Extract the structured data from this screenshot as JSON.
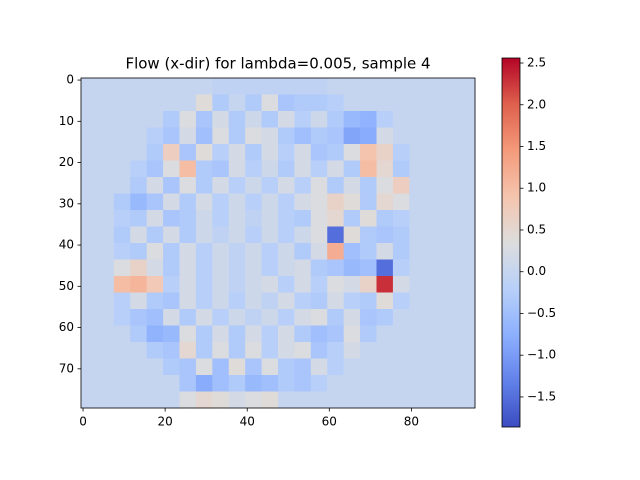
{
  "chart_data": {
    "type": "heatmap",
    "title": "Flow (x-dir) for lambda=0.005, sample 4",
    "cmap": "coolwarm",
    "clim": [
      -1.86,
      2.56
    ],
    "xlim": [
      -0.5,
      95.5
    ],
    "ylim": [
      79.5,
      -0.5
    ],
    "xticks": [
      0,
      20,
      40,
      60,
      80
    ],
    "yticks": [
      0,
      10,
      20,
      30,
      40,
      50,
      60,
      70
    ],
    "colorbar": {
      "ticks": [
        {
          "value": -1.5,
          "label": "−1.5"
        },
        {
          "value": -1.0,
          "label": "−1.0"
        },
        {
          "value": -0.5,
          "label": "−0.5"
        },
        {
          "value": 0,
          "label": "0.0"
        },
        0.5,
        {
          "value": 1.0,
          "label": "1.0"
        },
        1.5,
        {
          "value": 2.0,
          "label": "2.0"
        },
        2.5
      ]
    },
    "z": [
      [
        0,
        0,
        0,
        0,
        0,
        0,
        0,
        0,
        -0.1,
        -0.1,
        -0.1,
        -0.1,
        -0.1,
        -0.1,
        -0.1,
        0,
        0,
        0,
        0,
        0,
        0,
        0,
        0,
        0
      ],
      [
        0,
        0,
        0,
        0,
        0,
        0,
        0,
        0.4,
        -0.3,
        0,
        -0.3,
        0.3,
        -0.4,
        -0.3,
        -0.3,
        -0.2,
        0,
        0,
        0,
        0,
        0,
        0,
        0,
        0
      ],
      [
        0,
        0,
        0,
        0,
        0,
        -0.3,
        0.3,
        -0.4,
        0.2,
        -0.3,
        0.1,
        -0.3,
        0.2,
        -0.2,
        0.1,
        -0.3,
        -0.6,
        -0.7,
        -0.2,
        0,
        0,
        0,
        0,
        0
      ],
      [
        0,
        0,
        0,
        0,
        -0.2,
        -0.4,
        0.2,
        -0.5,
        0.3,
        -0.3,
        0.3,
        0.2,
        -0.3,
        -0.5,
        -0.3,
        -0.4,
        -0.9,
        -0.8,
        0.2,
        0,
        0,
        0,
        0,
        0
      ],
      [
        0,
        0,
        0,
        0,
        -0.3,
        0.7,
        -0.4,
        0.4,
        -0.2,
        0.2,
        -0.3,
        0.2,
        -0.2,
        0.2,
        -0.4,
        -0.3,
        0.3,
        0.9,
        0.6,
        -0.2,
        0,
        0,
        0,
        0
      ],
      [
        0,
        0,
        0,
        -0.2,
        -0.4,
        0.3,
        1.0,
        -0.3,
        -0.4,
        0.2,
        -0.2,
        0.1,
        -0.3,
        0.2,
        -0.2,
        0.2,
        -0.3,
        1.0,
        0.5,
        -0.3,
        0,
        0,
        0,
        0
      ],
      [
        0,
        0,
        0,
        -0.3,
        0.2,
        -0.4,
        0.3,
        -0.3,
        0.2,
        -0.2,
        0.1,
        -0.2,
        0.2,
        -0.2,
        0.3,
        -0.3,
        0.2,
        -0.3,
        0.3,
        0.7,
        0,
        0,
        0,
        0
      ],
      [
        0,
        0,
        -0.3,
        -0.6,
        -0.4,
        0.2,
        -0.3,
        0.2,
        -0.2,
        0.1,
        -0.2,
        0.1,
        -0.2,
        0.2,
        0.3,
        0.6,
        0.4,
        -0.3,
        0.5,
        0.3,
        0,
        0,
        0,
        0
      ],
      [
        0,
        0,
        -0.2,
        -0.3,
        0.2,
        -0.4,
        -0.3,
        0.1,
        -0.2,
        0.1,
        -0.1,
        0.1,
        -0.2,
        -0.3,
        0.3,
        0.5,
        -0.3,
        0.4,
        -0.3,
        -0.2,
        0,
        0,
        0,
        0
      ],
      [
        0,
        0,
        -0.3,
        0.2,
        -0.3,
        0.2,
        -0.3,
        0.1,
        -0.1,
        0.1,
        -0.2,
        0.1,
        -0.2,
        0.1,
        0.3,
        -1.5,
        0.4,
        -0.3,
        -0.4,
        -0.3,
        0,
        0,
        0,
        0
      ],
      [
        0,
        0,
        -0.2,
        -0.3,
        0.3,
        -0.3,
        0.2,
        -0.2,
        0.1,
        -0.1,
        0.1,
        -0.2,
        0.1,
        -0.3,
        0.2,
        1.2,
        -0.5,
        -0.3,
        0.2,
        -0.3,
        0,
        0,
        0,
        0
      ],
      [
        0,
        0,
        0.3,
        0.6,
        0.2,
        -0.3,
        0.2,
        -0.2,
        0.1,
        -0.1,
        0.1,
        -0.2,
        0.1,
        0.2,
        -0.3,
        -0.4,
        -0.6,
        -0.5,
        -1.5,
        -0.2,
        0,
        0,
        0,
        0
      ],
      [
        0,
        0,
        1.0,
        1.1,
        0.8,
        -0.2,
        0.2,
        -0.2,
        0.1,
        -0.1,
        0.1,
        0.2,
        -0.2,
        0.2,
        -0.2,
        0.3,
        0.2,
        0.6,
        2.3,
        0.2,
        0,
        0,
        0,
        0
      ],
      [
        0,
        0,
        -0.2,
        0.2,
        -0.3,
        -0.4,
        0.2,
        -0.2,
        0.1,
        -0.2,
        0.1,
        -0.1,
        0.2,
        -0.2,
        -0.3,
        0.2,
        -0.2,
        -0.3,
        0.4,
        -0.2,
        0,
        0,
        0,
        0
      ],
      [
        0,
        0,
        -0.2,
        -0.4,
        -0.5,
        0.2,
        -0.3,
        0.2,
        -0.2,
        0.1,
        -0.1,
        0.1,
        -0.2,
        0.2,
        0.3,
        -0.3,
        0.2,
        -0.4,
        -0.3,
        0,
        0,
        0,
        0,
        0
      ],
      [
        0,
        0,
        0,
        -0.3,
        -0.7,
        -0.6,
        0.3,
        -0.3,
        0.2,
        -0.3,
        0.2,
        -0.2,
        0.2,
        -0.3,
        -0.5,
        -0.4,
        0.3,
        -0.3,
        0,
        0,
        0,
        0,
        0,
        0
      ],
      [
        0,
        0,
        0,
        0,
        -0.3,
        -0.4,
        0.5,
        -0.3,
        0.3,
        -0.3,
        0.3,
        -0.2,
        0.2,
        0.3,
        -0.4,
        -0.2,
        0.2,
        0,
        0,
        0,
        0,
        0,
        0,
        0
      ],
      [
        0,
        0,
        0,
        0,
        0,
        -0.3,
        -0.4,
        0.3,
        -0.5,
        0.4,
        -0.4,
        0.3,
        -0.3,
        -0.4,
        0.2,
        -0.2,
        0,
        0,
        0,
        0,
        0,
        0,
        0,
        0
      ],
      [
        0,
        0,
        0,
        0,
        0,
        0,
        -0.4,
        -0.8,
        -0.5,
        -0.3,
        -0.6,
        -0.5,
        -0.3,
        -0.4,
        -0.2,
        0,
        0,
        0,
        0,
        0,
        0,
        0,
        0,
        0
      ],
      [
        0,
        0,
        0,
        0,
        0,
        0,
        0.3,
        0.5,
        0.4,
        0.2,
        0.3,
        0.4,
        0,
        0,
        0,
        0,
        0,
        0,
        0,
        0,
        0,
        0,
        0,
        0
      ]
    ]
  }
}
